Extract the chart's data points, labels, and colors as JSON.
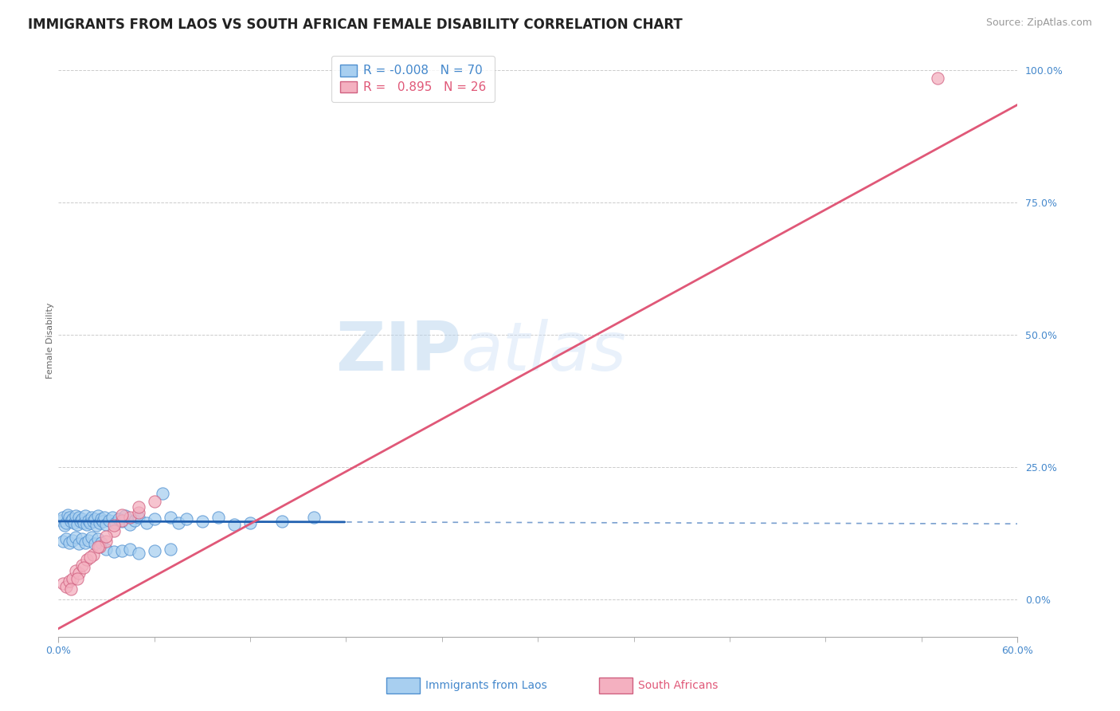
{
  "title": "IMMIGRANTS FROM LAOS VS SOUTH AFRICAN FEMALE DISABILITY CORRELATION CHART",
  "source": "Source: ZipAtlas.com",
  "ylabel_label": "Female Disability",
  "xlim": [
    0.0,
    0.6
  ],
  "ylim": [
    -0.07,
    1.05
  ],
  "y_tick_vals": [
    0.0,
    0.25,
    0.5,
    0.75,
    1.0
  ],
  "y_tick_labels": [
    "0.0%",
    "25.0%",
    "50.0%",
    "75.0%",
    "100.0%"
  ],
  "x_tick_vals": [
    0.0,
    0.6
  ],
  "x_tick_labels": [
    "0.0%",
    "60.0%"
  ],
  "legend_entries": [
    {
      "label": "Immigrants from Laos",
      "R": -0.008,
      "N": 70,
      "color": "#a8cff0"
    },
    {
      "label": "South Africans",
      "R": 0.895,
      "N": 26,
      "color": "#f4b0c0"
    }
  ],
  "blue_scatter_x": [
    0.002,
    0.003,
    0.004,
    0.005,
    0.006,
    0.007,
    0.008,
    0.009,
    0.01,
    0.011,
    0.012,
    0.013,
    0.014,
    0.015,
    0.016,
    0.017,
    0.018,
    0.019,
    0.02,
    0.021,
    0.022,
    0.023,
    0.024,
    0.025,
    0.026,
    0.027,
    0.028,
    0.029,
    0.03,
    0.032,
    0.034,
    0.036,
    0.038,
    0.04,
    0.042,
    0.045,
    0.048,
    0.05,
    0.055,
    0.06,
    0.065,
    0.07,
    0.075,
    0.08,
    0.09,
    0.1,
    0.11,
    0.12,
    0.14,
    0.16,
    0.003,
    0.005,
    0.007,
    0.009,
    0.011,
    0.013,
    0.015,
    0.017,
    0.019,
    0.021,
    0.023,
    0.025,
    0.027,
    0.03,
    0.035,
    0.04,
    0.045,
    0.05,
    0.06,
    0.07
  ],
  "blue_scatter_y": [
    0.15,
    0.155,
    0.14,
    0.145,
    0.16,
    0.155,
    0.148,
    0.152,
    0.145,
    0.158,
    0.142,
    0.155,
    0.148,
    0.152,
    0.145,
    0.158,
    0.142,
    0.15,
    0.145,
    0.155,
    0.148,
    0.152,
    0.14,
    0.158,
    0.145,
    0.152,
    0.148,
    0.155,
    0.142,
    0.15,
    0.155,
    0.145,
    0.152,
    0.148,
    0.158,
    0.142,
    0.15,
    0.155,
    0.145,
    0.152,
    0.2,
    0.155,
    0.145,
    0.152,
    0.148,
    0.155,
    0.142,
    0.145,
    0.148,
    0.155,
    0.11,
    0.115,
    0.108,
    0.112,
    0.118,
    0.105,
    0.115,
    0.108,
    0.112,
    0.118,
    0.105,
    0.115,
    0.108,
    0.095,
    0.09,
    0.092,
    0.095,
    0.088,
    0.092,
    0.095
  ],
  "pink_scatter_x": [
    0.003,
    0.005,
    0.007,
    0.009,
    0.011,
    0.013,
    0.015,
    0.018,
    0.022,
    0.026,
    0.03,
    0.035,
    0.04,
    0.045,
    0.05,
    0.06,
    0.008,
    0.012,
    0.016,
    0.02,
    0.025,
    0.03,
    0.035,
    0.04,
    0.05,
    0.55
  ],
  "pink_scatter_y": [
    0.03,
    0.025,
    0.035,
    0.04,
    0.055,
    0.05,
    0.065,
    0.075,
    0.085,
    0.1,
    0.11,
    0.13,
    0.15,
    0.155,
    0.165,
    0.185,
    0.02,
    0.04,
    0.06,
    0.08,
    0.1,
    0.12,
    0.14,
    0.16,
    0.175,
    0.985
  ],
  "watermark_zip": "ZIP",
  "watermark_atlas": "atlas",
  "background_color": "#ffffff",
  "grid_color": "#cccccc",
  "blue_line_color": "#2060b0",
  "pink_line_color": "#e05878",
  "blue_scatter_facecolor": "#a8cff0",
  "blue_scatter_edgecolor": "#5090d0",
  "pink_scatter_facecolor": "#f4b0c0",
  "pink_scatter_edgecolor": "#d06080",
  "title_fontsize": 12,
  "axis_label_fontsize": 8,
  "tick_fontsize": 9,
  "source_fontsize": 9,
  "blue_line_x_solid_end": 0.18,
  "pink_line_extends_full": true,
  "blue_reg_slope": -0.008,
  "blue_reg_intercept": 0.148,
  "pink_reg_slope": 1.65,
  "pink_reg_intercept": -0.055
}
